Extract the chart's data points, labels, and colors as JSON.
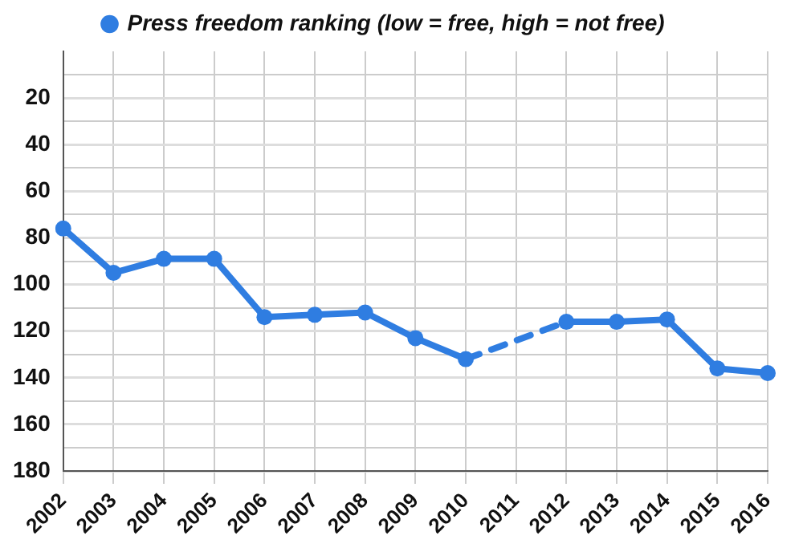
{
  "chart_data": {
    "type": "line",
    "categories": [
      "2002",
      "2003",
      "2004",
      "2005",
      "2006",
      "2007",
      "2008",
      "2009",
      "2010",
      "2011",
      "2012",
      "2013",
      "2014",
      "2015",
      "2016"
    ],
    "series": [
      {
        "name": "Press freedom ranking (low = free, high = not free)",
        "color": "#2f7de1",
        "values": [
          76,
          95,
          89,
          89,
          114,
          113,
          112,
          123,
          132,
          null,
          116,
          116,
          115,
          136,
          138
        ]
      }
    ],
    "ylim": [
      180,
      0
    ],
    "yticks": [
      {
        "value": 10,
        "label": null
      },
      20,
      {
        "value": 30,
        "label": null
      },
      40,
      {
        "value": 50,
        "label": null
      },
      60,
      {
        "value": 70,
        "label": null
      },
      80,
      {
        "value": 90,
        "label": null
      },
      100,
      {
        "value": 110,
        "label": null
      },
      120,
      {
        "value": 130,
        "label": null
      },
      140,
      {
        "value": 150,
        "label": null
      },
      160,
      {
        "value": 170,
        "label": null
      },
      180
    ],
    "grid": true,
    "legend": "top",
    "marker": "circle",
    "line_style": "solid"
  }
}
